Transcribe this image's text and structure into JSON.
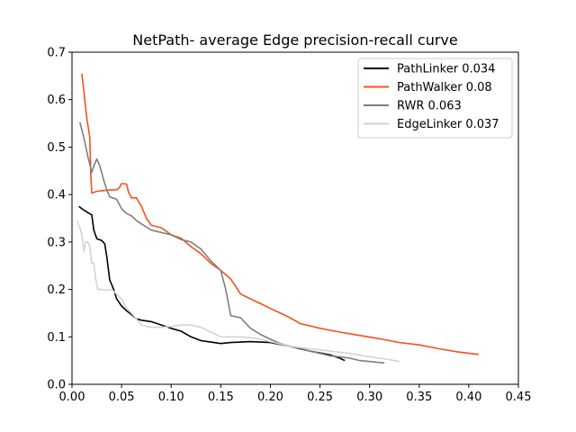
{
  "chart_data": {
    "type": "line",
    "title": "NetPath- average Edge precision-recall curve",
    "xlabel": "",
    "ylabel": "",
    "xlim": [
      0.0,
      0.45
    ],
    "ylim": [
      0.0,
      0.7
    ],
    "xticks": [
      "0.00",
      "0.05",
      "0.10",
      "0.15",
      "0.20",
      "0.25",
      "0.30",
      "0.35",
      "0.40",
      "0.45"
    ],
    "yticks": [
      "0.0",
      "0.1",
      "0.2",
      "0.3",
      "0.4",
      "0.5",
      "0.6",
      "0.7"
    ],
    "grid": false,
    "legend_position": "top-right",
    "series": [
      {
        "name": "PathLinker 0.034",
        "color": "#000000",
        "x": [
          0.007,
          0.01,
          0.015,
          0.02,
          0.022,
          0.025,
          0.03,
          0.033,
          0.035,
          0.038,
          0.042,
          0.045,
          0.05,
          0.055,
          0.06,
          0.065,
          0.07,
          0.08,
          0.09,
          0.1,
          0.11,
          0.12,
          0.13,
          0.14,
          0.15,
          0.16,
          0.18,
          0.2,
          0.22,
          0.24,
          0.25,
          0.26,
          0.27,
          0.275
        ],
        "y": [
          0.375,
          0.37,
          0.363,
          0.357,
          0.325,
          0.307,
          0.303,
          0.296,
          0.27,
          0.22,
          0.2,
          0.18,
          0.165,
          0.155,
          0.147,
          0.138,
          0.135,
          0.132,
          0.125,
          0.118,
          0.112,
          0.1,
          0.092,
          0.089,
          0.086,
          0.088,
          0.09,
          0.088,
          0.08,
          0.07,
          0.066,
          0.062,
          0.055,
          0.05
        ]
      },
      {
        "name": "PathWalker 0.08",
        "color": "#f4511e",
        "x": [
          0.01,
          0.015,
          0.018,
          0.019,
          0.02,
          0.025,
          0.03,
          0.04,
          0.045,
          0.048,
          0.05,
          0.055,
          0.057,
          0.06,
          0.065,
          0.07,
          0.075,
          0.08,
          0.09,
          0.1,
          0.11,
          0.12,
          0.13,
          0.14,
          0.15,
          0.16,
          0.17,
          0.18,
          0.19,
          0.2,
          0.21,
          0.22,
          0.23,
          0.25,
          0.27,
          0.29,
          0.31,
          0.33,
          0.35,
          0.37,
          0.39,
          0.41
        ],
        "y": [
          0.655,
          0.56,
          0.52,
          0.44,
          0.403,
          0.407,
          0.408,
          0.41,
          0.41,
          0.415,
          0.423,
          0.422,
          0.405,
          0.393,
          0.393,
          0.375,
          0.35,
          0.335,
          0.33,
          0.315,
          0.308,
          0.29,
          0.275,
          0.255,
          0.24,
          0.222,
          0.19,
          0.18,
          0.17,
          0.16,
          0.15,
          0.14,
          0.128,
          0.118,
          0.11,
          0.103,
          0.096,
          0.088,
          0.083,
          0.075,
          0.068,
          0.063
        ]
      },
      {
        "name": "RWR 0.063",
        "color": "#7f7f7f",
        "x": [
          0.008,
          0.012,
          0.016,
          0.02,
          0.022,
          0.025,
          0.028,
          0.032,
          0.035,
          0.038,
          0.045,
          0.05,
          0.055,
          0.06,
          0.065,
          0.07,
          0.08,
          0.09,
          0.1,
          0.11,
          0.12,
          0.13,
          0.14,
          0.15,
          0.155,
          0.16,
          0.17,
          0.18,
          0.19,
          0.2,
          0.21,
          0.22,
          0.23,
          0.24,
          0.25,
          0.26,
          0.27,
          0.28,
          0.29,
          0.3,
          0.315
        ],
        "y": [
          0.552,
          0.52,
          0.48,
          0.447,
          0.46,
          0.475,
          0.46,
          0.43,
          0.41,
          0.395,
          0.39,
          0.37,
          0.36,
          0.355,
          0.345,
          0.338,
          0.325,
          0.32,
          0.315,
          0.305,
          0.3,
          0.285,
          0.26,
          0.24,
          0.2,
          0.145,
          0.14,
          0.118,
          0.105,
          0.095,
          0.086,
          0.08,
          0.076,
          0.07,
          0.065,
          0.06,
          0.058,
          0.055,
          0.05,
          0.048,
          0.045
        ]
      },
      {
        "name": "EdgeLinker 0.037",
        "color": "#d3d3d3",
        "x": [
          0.005,
          0.008,
          0.01,
          0.012,
          0.014,
          0.016,
          0.018,
          0.02,
          0.022,
          0.024,
          0.026,
          0.03,
          0.035,
          0.04,
          0.045,
          0.05,
          0.055,
          0.06,
          0.07,
          0.08,
          0.09,
          0.1,
          0.11,
          0.12,
          0.13,
          0.14,
          0.15,
          0.16,
          0.17,
          0.18,
          0.19,
          0.2,
          0.21,
          0.22,
          0.24,
          0.26,
          0.28,
          0.3,
          0.31,
          0.32,
          0.33
        ],
        "y": [
          0.345,
          0.33,
          0.315,
          0.28,
          0.3,
          0.3,
          0.29,
          0.255,
          0.255,
          0.22,
          0.2,
          0.2,
          0.198,
          0.2,
          0.19,
          0.18,
          0.16,
          0.15,
          0.125,
          0.12,
          0.12,
          0.122,
          0.125,
          0.125,
          0.12,
          0.11,
          0.1,
          0.1,
          0.1,
          0.098,
          0.095,
          0.09,
          0.085,
          0.08,
          0.075,
          0.07,
          0.065,
          0.058,
          0.055,
          0.052,
          0.048
        ]
      }
    ]
  }
}
